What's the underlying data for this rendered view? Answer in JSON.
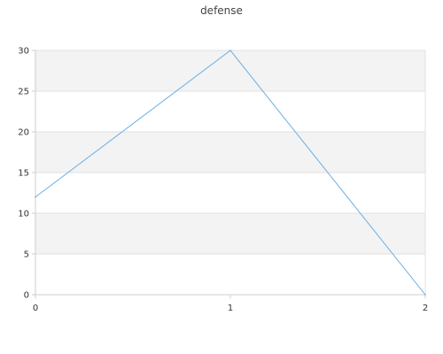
{
  "chart_data": {
    "type": "line",
    "title": "defense",
    "xlabel": "",
    "ylabel": "",
    "x": [
      0,
      1,
      2
    ],
    "series": [
      {
        "values": [
          12,
          30,
          0
        ]
      }
    ],
    "xlim": [
      0,
      2
    ],
    "ylim": [
      0,
      30
    ],
    "yticks": [
      0,
      5,
      10,
      15,
      20,
      25,
      30
    ],
    "xticks": [
      0,
      1,
      2
    ],
    "grid": true,
    "alternating_bands": true,
    "colors": {
      "line": "#6aaee3",
      "band": "#f3f3f3",
      "grid": "#e0e0e0",
      "axis": "#cccccc",
      "text": "#333333"
    }
  }
}
